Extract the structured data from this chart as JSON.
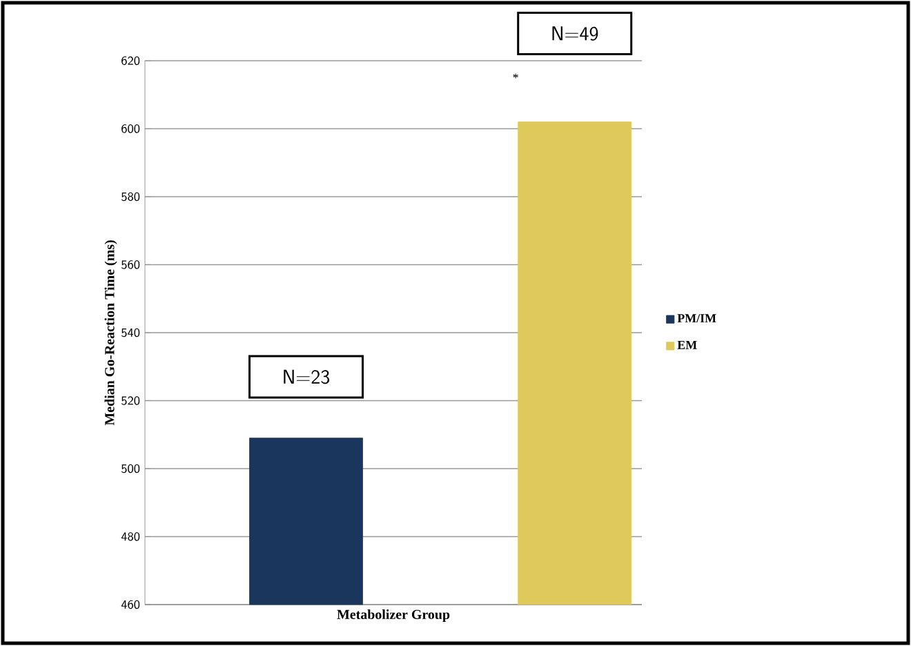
{
  "chart_data": {
    "type": "bar",
    "xlabel": "Metabolizer Group",
    "ylabel": "Median Go-Reaction Time (ms)",
    "categories": [
      null,
      null
    ],
    "series": [
      {
        "name": "PM/IM",
        "color": "#1b365d",
        "values": [
          509,
          null
        ]
      },
      {
        "name": "EM",
        "color": "#dfc95a",
        "values": [
          null,
          602
        ]
      }
    ],
    "ylim": [
      460,
      620
    ],
    "yticks": [
      460,
      480,
      500,
      520,
      540,
      560,
      580,
      600,
      620
    ],
    "grid": "y",
    "legend": "right",
    "annotations": [
      "N=23",
      "N=49",
      "*"
    ]
  }
}
